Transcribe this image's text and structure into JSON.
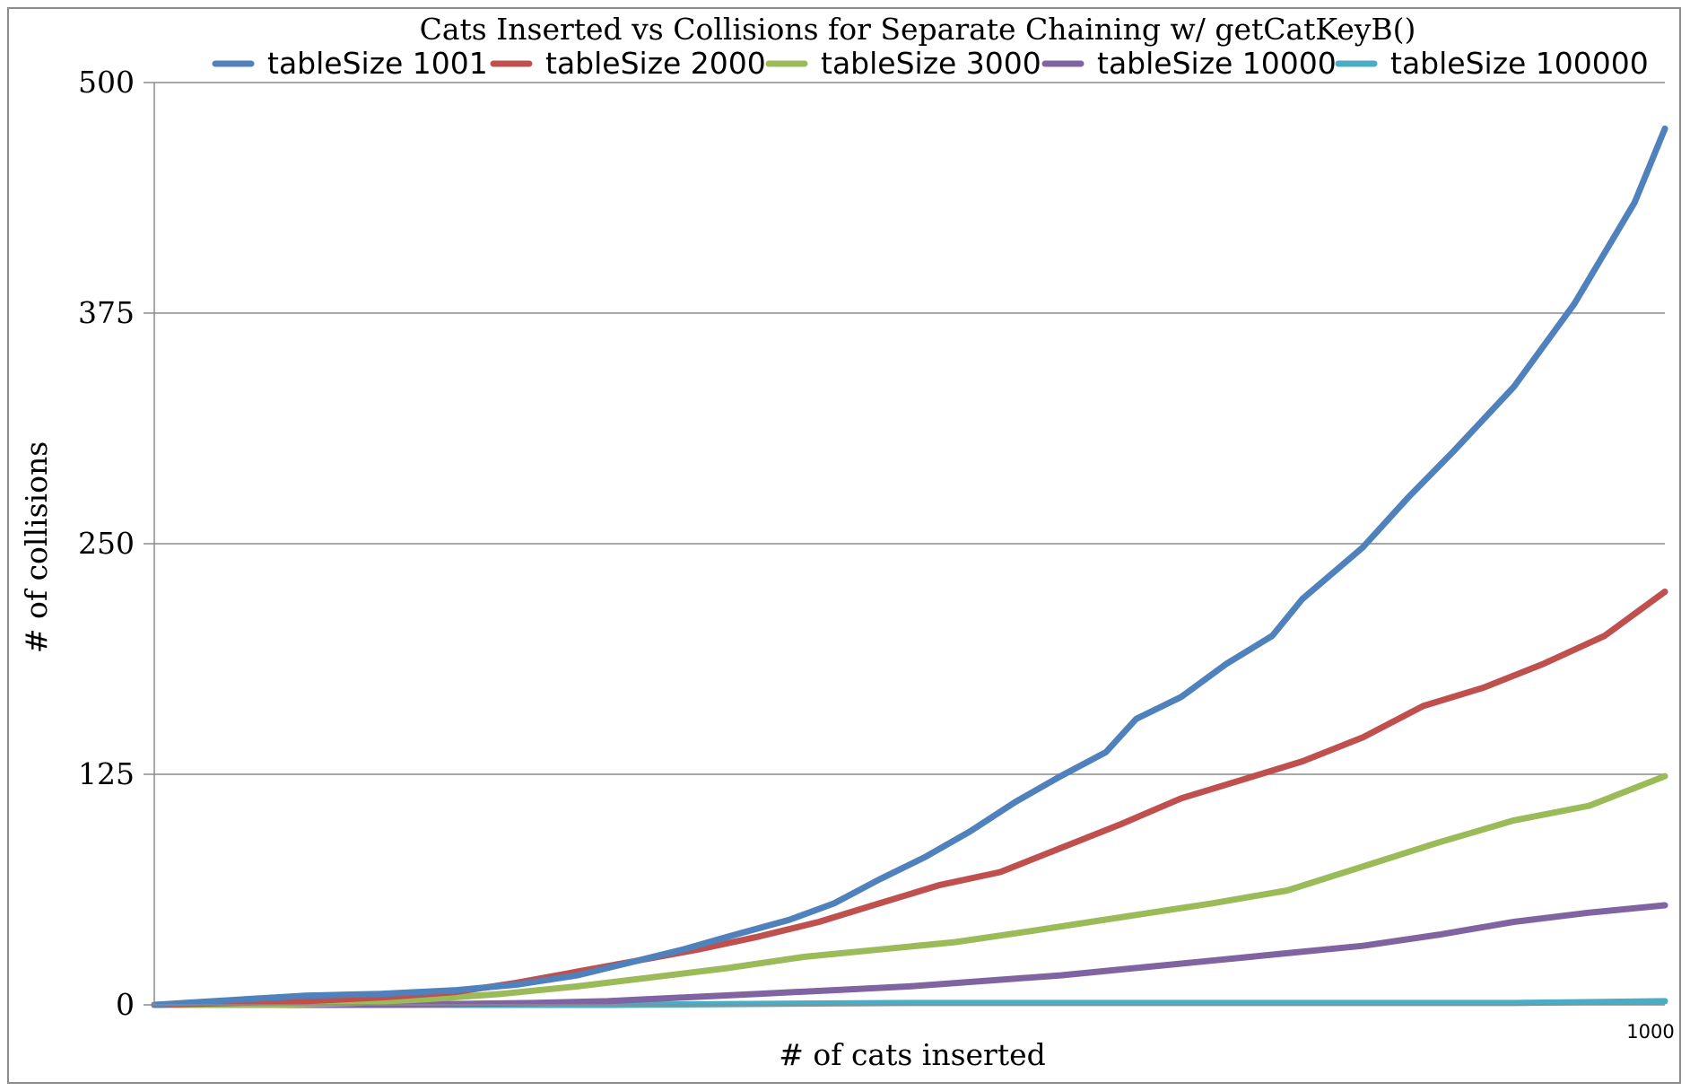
{
  "chart_data": {
    "type": "line",
    "title": "Cats Inserted vs Collisions for Separate Chaining w/ getCatKeyB()",
    "xlabel": "# of cats inserted",
    "ylabel": "# of collisions",
    "xlim": [
      0,
      1000
    ],
    "ylim": [
      0,
      500
    ],
    "yticks": [
      0,
      125,
      250,
      375,
      500
    ],
    "yticks_labels": [
      "0",
      "125",
      "250",
      "375",
      "500"
    ],
    "xticks": [
      1000
    ],
    "xticks_labels": [
      "1000"
    ],
    "grid": "horizontal",
    "legend_position": "top",
    "series": [
      {
        "name": "tableSize 1001",
        "color": "#4f81bd",
        "x": [
          0,
          20,
          60,
          100,
          150,
          200,
          240,
          280,
          320,
          350,
          380,
          420,
          450,
          480,
          510,
          540,
          570,
          600,
          630,
          650,
          680,
          710,
          740,
          760,
          800,
          830,
          860,
          900,
          940,
          980,
          1000
        ],
        "y": [
          0,
          1,
          3,
          5,
          6,
          8,
          11,
          16,
          24,
          30,
          37,
          46,
          55,
          68,
          80,
          94,
          110,
          124,
          137,
          155,
          167,
          185,
          200,
          220,
          248,
          275,
          300,
          335,
          380,
          435,
          475
        ]
      },
      {
        "name": "tableSize 2000",
        "color": "#c0504d",
        "x": [
          0,
          50,
          100,
          150,
          200,
          240,
          280,
          320,
          360,
          400,
          440,
          480,
          520,
          560,
          600,
          640,
          680,
          720,
          760,
          800,
          840,
          880,
          920,
          960,
          1000
        ],
        "y": [
          0,
          1,
          2,
          4,
          7,
          12,
          18,
          24,
          30,
          37,
          45,
          55,
          65,
          72,
          85,
          98,
          112,
          122,
          132,
          145,
          162,
          172,
          185,
          200,
          224
        ]
      },
      {
        "name": "tableSize 3000",
        "color": "#9bbb59",
        "x": [
          0,
          80,
          130,
          180,
          230,
          280,
          330,
          380,
          430,
          480,
          530,
          580,
          620,
          660,
          700,
          750,
          800,
          850,
          900,
          950,
          1000
        ],
        "y": [
          0,
          0,
          1,
          3,
          6,
          10,
          15,
          20,
          26,
          30,
          34,
          40,
          45,
          50,
          55,
          62,
          75,
          88,
          100,
          108,
          124
        ]
      },
      {
        "name": "tableSize 10000",
        "color": "#8064a2",
        "x": [
          0,
          150,
          250,
          300,
          350,
          400,
          450,
          500,
          550,
          600,
          650,
          700,
          750,
          800,
          850,
          900,
          950,
          1000
        ],
        "y": [
          0,
          0,
          1,
          2,
          4,
          6,
          8,
          10,
          13,
          16,
          20,
          24,
          28,
          32,
          38,
          45,
          50,
          54
        ]
      },
      {
        "name": "tableSize 100000",
        "color": "#4bacc6",
        "x": [
          0,
          300,
          500,
          700,
          900,
          1000
        ],
        "y": [
          0,
          0,
          1,
          1,
          1,
          2
        ]
      }
    ]
  }
}
